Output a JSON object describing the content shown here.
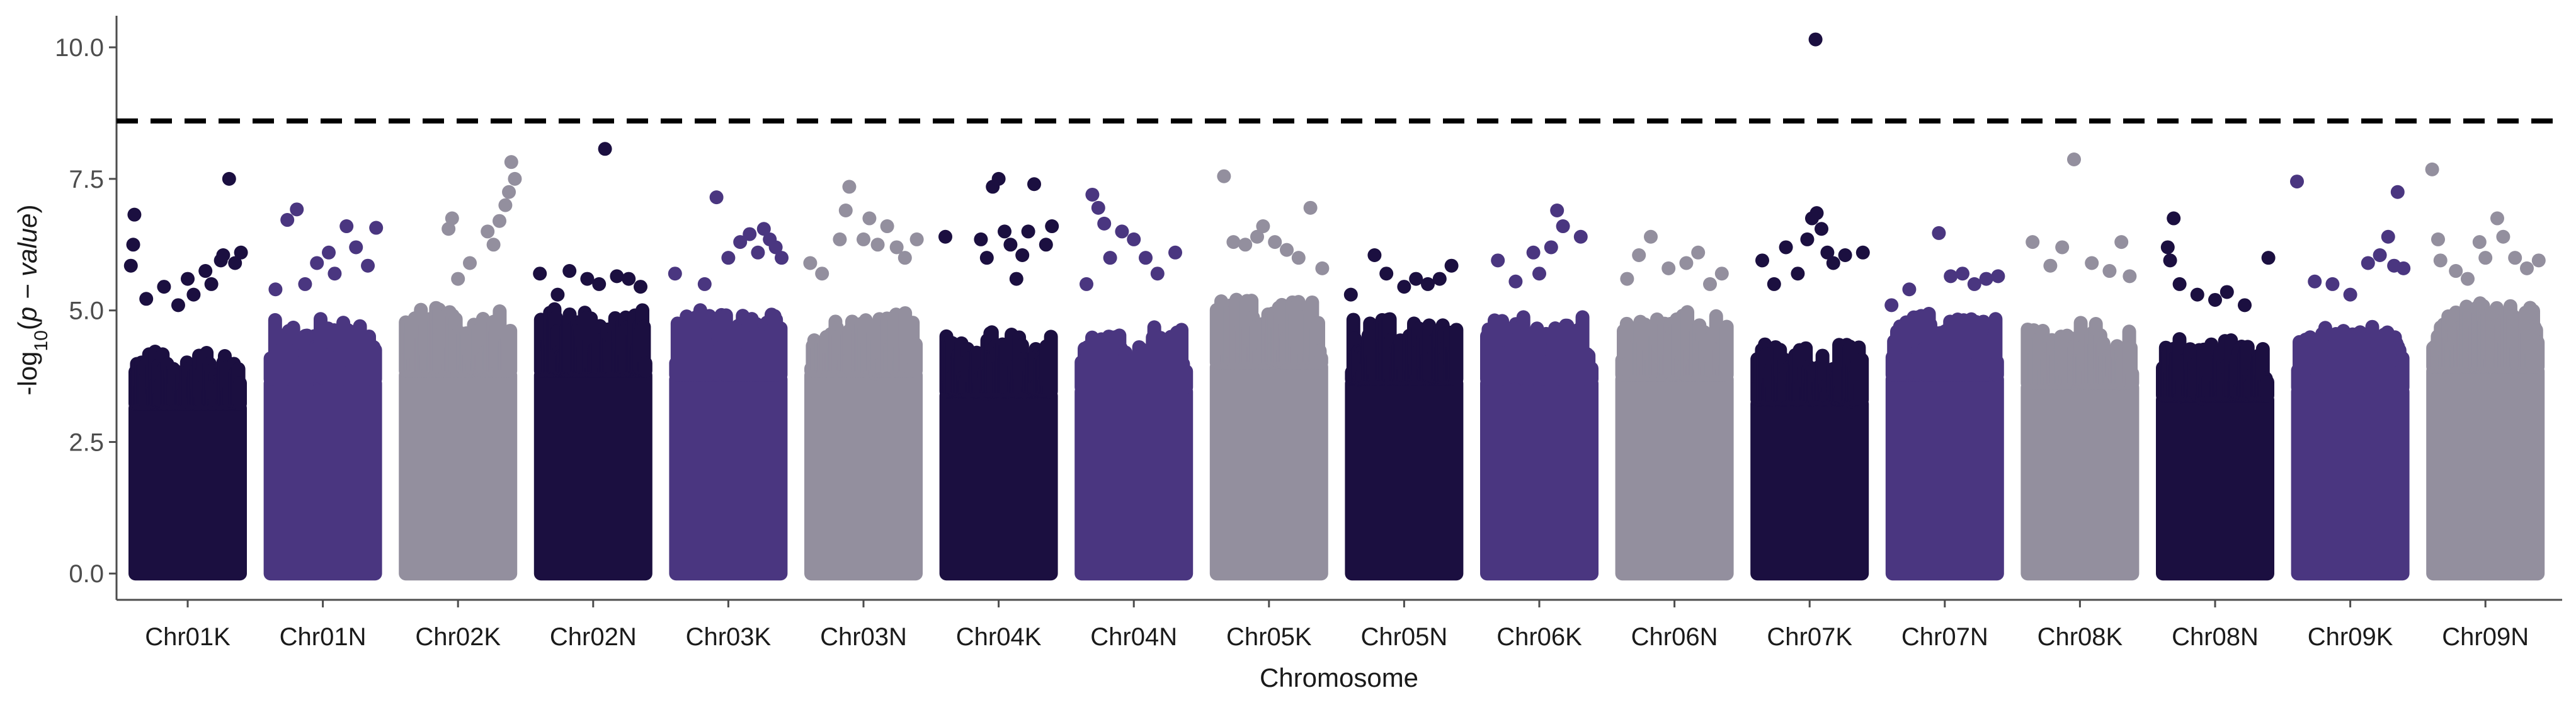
{
  "chart_data": {
    "type": "scatter",
    "subtype": "manhattan",
    "title": "",
    "xlabel": "Chromosome",
    "ylabel_parts": {
      "prefix": "-log",
      "subscript": "10",
      "open": "(",
      "italic": "p − value",
      "close": ")"
    },
    "ylim": [
      -0.5,
      10.6
    ],
    "yticks": [
      0.0,
      2.5,
      5.0,
      7.5,
      10.0
    ],
    "ytick_labels": [
      "0.0",
      "2.5",
      "5.0",
      "7.5",
      "10.0"
    ],
    "threshold": 8.6,
    "threshold_style": "dashed",
    "grid": false,
    "legend": "none",
    "colors": {
      "dark": "#1b0f40",
      "purple": "#4a3680",
      "gray": "#938f9e",
      "threshold": "#000000",
      "axis": "#4d4d4d"
    },
    "color_cycle": [
      "dark",
      "purple",
      "gray"
    ],
    "categories": [
      "Chr01K",
      "Chr01N",
      "Chr02K",
      "Chr02N",
      "Chr03K",
      "Chr03N",
      "Chr04K",
      "Chr04N",
      "Chr05K",
      "Chr05N",
      "Chr06K",
      "Chr06N",
      "Chr07K",
      "Chr07N",
      "Chr08K",
      "Chr08N",
      "Chr09K",
      "Chr09N"
    ],
    "bulk_max": [
      4.2,
      4.8,
      5.0,
      5.0,
      4.9,
      5.0,
      4.5,
      4.6,
      5.2,
      4.8,
      4.8,
      4.9,
      4.3,
      4.9,
      4.7,
      4.4,
      4.6,
      5.1
    ],
    "outliers": [
      [
        [
          0.05,
          6.82
        ],
        [
          0.04,
          6.25
        ],
        [
          0.02,
          5.85
        ],
        [
          0.15,
          5.22
        ],
        [
          0.3,
          5.45
        ],
        [
          0.5,
          5.6
        ],
        [
          0.55,
          5.3
        ],
        [
          0.65,
          5.75
        ],
        [
          0.7,
          5.5
        ],
        [
          0.78,
          5.95
        ],
        [
          0.8,
          6.05
        ],
        [
          0.85,
          7.5
        ],
        [
          0.9,
          5.9
        ],
        [
          0.95,
          6.1
        ],
        [
          0.42,
          5.1
        ]
      ],
      [
        [
          0.2,
          6.72
        ],
        [
          0.28,
          6.92
        ],
        [
          0.1,
          5.4
        ],
        [
          0.35,
          5.5
        ],
        [
          0.45,
          5.9
        ],
        [
          0.55,
          6.1
        ],
        [
          0.7,
          6.6
        ],
        [
          0.78,
          6.2
        ],
        [
          0.88,
          5.85
        ],
        [
          0.95,
          6.57
        ],
        [
          0.6,
          5.7
        ]
      ],
      [
        [
          0.45,
          6.75
        ],
        [
          0.42,
          6.55
        ],
        [
          0.6,
          5.9
        ],
        [
          0.75,
          6.5
        ],
        [
          0.8,
          6.25
        ],
        [
          0.85,
          6.7
        ],
        [
          0.9,
          7.0
        ],
        [
          0.93,
          7.25
        ],
        [
          0.95,
          7.82
        ],
        [
          0.98,
          7.5
        ],
        [
          0.5,
          5.6
        ]
      ],
      [
        [
          0.05,
          5.7
        ],
        [
          0.3,
          5.75
        ],
        [
          0.45,
          5.6
        ],
        [
          0.55,
          5.5
        ],
        [
          0.6,
          8.07
        ],
        [
          0.7,
          5.65
        ],
        [
          0.8,
          5.6
        ],
        [
          0.9,
          5.45
        ],
        [
          0.2,
          5.3
        ]
      ],
      [
        [
          0.05,
          5.7
        ],
        [
          0.4,
          7.15
        ],
        [
          0.5,
          6.0
        ],
        [
          0.6,
          6.3
        ],
        [
          0.68,
          6.45
        ],
        [
          0.75,
          6.1
        ],
        [
          0.8,
          6.55
        ],
        [
          0.85,
          6.35
        ],
        [
          0.9,
          6.2
        ],
        [
          0.95,
          6.0
        ],
        [
          0.3,
          5.5
        ]
      ],
      [
        [
          0.05,
          5.9
        ],
        [
          0.3,
          6.35
        ],
        [
          0.35,
          6.9
        ],
        [
          0.38,
          7.35
        ],
        [
          0.5,
          6.35
        ],
        [
          0.62,
          6.25
        ],
        [
          0.7,
          6.6
        ],
        [
          0.78,
          6.2
        ],
        [
          0.85,
          6.0
        ],
        [
          0.95,
          6.35
        ],
        [
          0.55,
          6.75
        ],
        [
          0.15,
          5.7
        ]
      ],
      [
        [
          0.05,
          6.4
        ],
        [
          0.35,
          6.35
        ],
        [
          0.45,
          7.35
        ],
        [
          0.5,
          7.5
        ],
        [
          0.55,
          6.5
        ],
        [
          0.6,
          6.25
        ],
        [
          0.65,
          5.6
        ],
        [
          0.7,
          6.05
        ],
        [
          0.75,
          6.5
        ],
        [
          0.8,
          7.4
        ],
        [
          0.9,
          6.25
        ],
        [
          0.95,
          6.6
        ],
        [
          0.4,
          6.0
        ]
      ],
      [
        [
          0.15,
          7.2
        ],
        [
          0.2,
          6.95
        ],
        [
          0.25,
          6.65
        ],
        [
          0.3,
          6.0
        ],
        [
          0.4,
          6.5
        ],
        [
          0.5,
          6.35
        ],
        [
          0.6,
          6.0
        ],
        [
          0.7,
          5.7
        ],
        [
          0.85,
          6.1
        ],
        [
          0.1,
          5.5
        ]
      ],
      [
        [
          0.12,
          7.55
        ],
        [
          0.2,
          6.3
        ],
        [
          0.3,
          6.25
        ],
        [
          0.4,
          6.4
        ],
        [
          0.45,
          6.6
        ],
        [
          0.55,
          6.3
        ],
        [
          0.65,
          6.15
        ],
        [
          0.75,
          6.0
        ],
        [
          0.85,
          6.95
        ],
        [
          0.95,
          5.8
        ]
      ],
      [
        [
          0.25,
          6.05
        ],
        [
          0.35,
          5.7
        ],
        [
          0.5,
          5.45
        ],
        [
          0.6,
          5.6
        ],
        [
          0.7,
          5.5
        ],
        [
          0.8,
          5.6
        ],
        [
          0.9,
          5.85
        ],
        [
          0.05,
          5.3
        ]
      ],
      [
        [
          0.15,
          5.95
        ],
        [
          0.3,
          5.55
        ],
        [
          0.45,
          6.1
        ],
        [
          0.6,
          6.2
        ],
        [
          0.65,
          6.9
        ],
        [
          0.7,
          6.6
        ],
        [
          0.85,
          6.4
        ],
        [
          0.5,
          5.7
        ]
      ],
      [
        [
          0.2,
          6.05
        ],
        [
          0.3,
          6.4
        ],
        [
          0.45,
          5.8
        ],
        [
          0.6,
          5.9
        ],
        [
          0.7,
          6.1
        ],
        [
          0.8,
          5.5
        ],
        [
          0.9,
          5.7
        ],
        [
          0.1,
          5.6
        ]
      ],
      [
        [
          0.1,
          5.95
        ],
        [
          0.2,
          5.5
        ],
        [
          0.3,
          6.2
        ],
        [
          0.4,
          5.7
        ],
        [
          0.48,
          6.35
        ],
        [
          0.52,
          6.75
        ],
        [
          0.56,
          6.85
        ],
        [
          0.6,
          6.55
        ],
        [
          0.65,
          6.1
        ],
        [
          0.7,
          5.9
        ],
        [
          0.8,
          6.05
        ],
        [
          0.95,
          6.1
        ],
        [
          0.55,
          10.15
        ]
      ],
      [
        [
          0.05,
          5.1
        ],
        [
          0.2,
          5.4
        ],
        [
          0.45,
          6.47
        ],
        [
          0.55,
          5.65
        ],
        [
          0.65,
          5.7
        ],
        [
          0.75,
          5.5
        ],
        [
          0.85,
          5.6
        ],
        [
          0.95,
          5.65
        ]
      ],
      [
        [
          0.1,
          6.3
        ],
        [
          0.25,
          5.85
        ],
        [
          0.35,
          6.2
        ],
        [
          0.45,
          7.87
        ],
        [
          0.6,
          5.9
        ],
        [
          0.75,
          5.75
        ],
        [
          0.85,
          6.3
        ],
        [
          0.92,
          5.65
        ]
      ],
      [
        [
          0.1,
          6.2
        ],
        [
          0.12,
          5.95
        ],
        [
          0.15,
          6.75
        ],
        [
          0.2,
          5.5
        ],
        [
          0.35,
          5.3
        ],
        [
          0.5,
          5.2
        ],
        [
          0.6,
          5.35
        ],
        [
          0.75,
          5.1
        ],
        [
          0.95,
          6.0
        ]
      ],
      [
        [
          0.05,
          7.45
        ],
        [
          0.2,
          5.55
        ],
        [
          0.35,
          5.5
        ],
        [
          0.5,
          5.3
        ],
        [
          0.65,
          5.9
        ],
        [
          0.75,
          6.05
        ],
        [
          0.82,
          6.4
        ],
        [
          0.87,
          5.85
        ],
        [
          0.9,
          7.25
        ],
        [
          0.95,
          5.8
        ]
      ],
      [
        [
          0.05,
          7.68
        ],
        [
          0.1,
          6.35
        ],
        [
          0.12,
          5.95
        ],
        [
          0.25,
          5.75
        ],
        [
          0.35,
          5.6
        ],
        [
          0.45,
          6.3
        ],
        [
          0.5,
          6.0
        ],
        [
          0.6,
          6.75
        ],
        [
          0.65,
          6.4
        ],
        [
          0.75,
          6.0
        ],
        [
          0.85,
          5.8
        ],
        [
          0.95,
          5.95
        ]
      ]
    ]
  }
}
